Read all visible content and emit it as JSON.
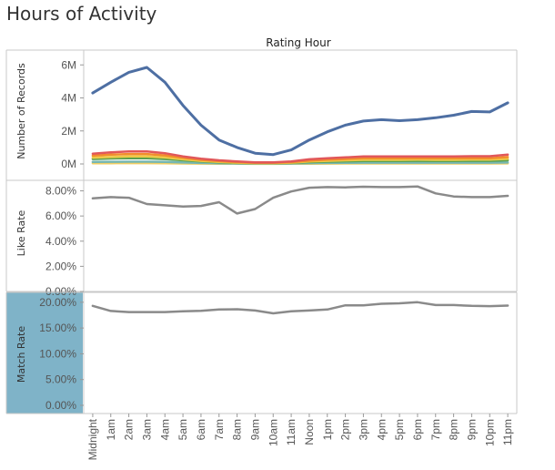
{
  "title": "Hours of Activity",
  "column_header": "Rating Hour",
  "colors": {
    "records_main": "#4e6fa3",
    "rate_line": "#8a8a8a",
    "highlight_bg": "#7fb3c8"
  },
  "chart_data": [
    {
      "type": "line",
      "ylabel": "Number of Records",
      "yticks": [
        "0M",
        "2M",
        "4M",
        "6M"
      ],
      "ylim": [
        0,
        6400000
      ],
      "categories": [
        "Midnight",
        "1am",
        "2am",
        "3am",
        "4am",
        "5am",
        "6am",
        "7am",
        "8am",
        "9am",
        "10am",
        "11am",
        "Noon",
        "1pm",
        "2pm",
        "3pm",
        "4pm",
        "5pm",
        "6pm",
        "7pm",
        "8pm",
        "9pm",
        "10pm",
        "11pm"
      ],
      "series": [
        {
          "color": "#4e6fa3",
          "values": [
            4300000,
            4950000,
            5550000,
            5850000,
            4950000,
            3550000,
            2350000,
            1450000,
            1000000,
            650000,
            570000,
            850000,
            1450000,
            1950000,
            2350000,
            2600000,
            2680000,
            2620000,
            2680000,
            2800000,
            2950000,
            3180000,
            3150000,
            3700000
          ]
        },
        {
          "color": "#e15759",
          "values": [
            620000,
            700000,
            760000,
            760000,
            650000,
            460000,
            320000,
            220000,
            150000,
            100000,
            100000,
            150000,
            280000,
            350000,
            400000,
            450000,
            450000,
            450000,
            460000,
            450000,
            450000,
            470000,
            470000,
            560000
          ]
        },
        {
          "color": "#f28e2b",
          "values": [
            500000,
            560000,
            600000,
            600000,
            520000,
            370000,
            250000,
            170000,
            110000,
            70000,
            70000,
            110000,
            200000,
            260000,
            300000,
            340000,
            340000,
            340000,
            350000,
            340000,
            340000,
            350000,
            350000,
            420000
          ]
        },
        {
          "color": "#edc948",
          "values": [
            380000,
            420000,
            450000,
            450000,
            390000,
            280000,
            190000,
            120000,
            80000,
            50000,
            50000,
            80000,
            150000,
            190000,
            220000,
            250000,
            250000,
            250000,
            260000,
            250000,
            250000,
            260000,
            260000,
            310000
          ]
        },
        {
          "color": "#59a14f",
          "values": [
            300000,
            330000,
            350000,
            350000,
            300000,
            220000,
            150000,
            100000,
            60000,
            40000,
            40000,
            60000,
            110000,
            140000,
            160000,
            180000,
            180000,
            180000,
            190000,
            180000,
            180000,
            190000,
            190000,
            220000
          ]
        },
        {
          "color": "#76b7b2",
          "values": [
            120000,
            130000,
            140000,
            140000,
            120000,
            90000,
            60000,
            40000,
            30000,
            20000,
            20000,
            30000,
            50000,
            60000,
            70000,
            80000,
            80000,
            80000,
            80000,
            80000,
            80000,
            80000,
            80000,
            90000
          ]
        },
        {
          "color": "#f1ce63",
          "values": [
            40000,
            45000,
            50000,
            50000,
            40000,
            30000,
            20000,
            15000,
            10000,
            8000,
            8000,
            10000,
            15000,
            20000,
            25000,
            28000,
            28000,
            28000,
            28000,
            28000,
            28000,
            28000,
            28000,
            32000
          ]
        }
      ]
    },
    {
      "type": "line",
      "ylabel": "Like Rate",
      "yticks": [
        "0.00%",
        "2.00%",
        "4.00%",
        "6.00%",
        "8.00%"
      ],
      "ylim": [
        0,
        8.4
      ],
      "categories": [
        "Midnight",
        "1am",
        "2am",
        "3am",
        "4am",
        "5am",
        "6am",
        "7am",
        "8am",
        "9am",
        "10am",
        "11am",
        "Noon",
        "1pm",
        "2pm",
        "3pm",
        "4pm",
        "5pm",
        "6pm",
        "7pm",
        "8pm",
        "9pm",
        "10pm",
        "11pm"
      ],
      "series": [
        {
          "color": "#8a8a8a",
          "values": [
            7.4,
            7.5,
            7.45,
            6.95,
            6.85,
            6.75,
            6.8,
            7.1,
            6.2,
            6.55,
            7.45,
            7.95,
            8.25,
            8.3,
            8.28,
            8.33,
            8.3,
            8.3,
            8.35,
            7.8,
            7.55,
            7.5,
            7.5,
            7.6
          ]
        }
      ]
    },
    {
      "type": "line",
      "ylabel": "Match Rate",
      "yticks": [
        "0.00%",
        "5.00%",
        "10.00%",
        "15.00%",
        "20.00%"
      ],
      "ylim": [
        0,
        20.5
      ],
      "categories": [
        "Midnight",
        "1am",
        "2am",
        "3am",
        "4am",
        "5am",
        "6am",
        "7am",
        "8am",
        "9am",
        "10am",
        "11am",
        "Noon",
        "1pm",
        "2pm",
        "3pm",
        "4pm",
        "5pm",
        "6pm",
        "7pm",
        "8pm",
        "9pm",
        "10pm",
        "11pm"
      ],
      "series": [
        {
          "color": "#8a8a8a",
          "values": [
            19.3,
            18.3,
            18.1,
            18.1,
            18.1,
            18.25,
            18.35,
            18.6,
            18.65,
            18.4,
            17.85,
            18.25,
            18.4,
            18.6,
            19.4,
            19.4,
            19.7,
            19.8,
            20.0,
            19.45,
            19.45,
            19.3,
            19.25,
            19.35
          ]
        }
      ]
    }
  ]
}
